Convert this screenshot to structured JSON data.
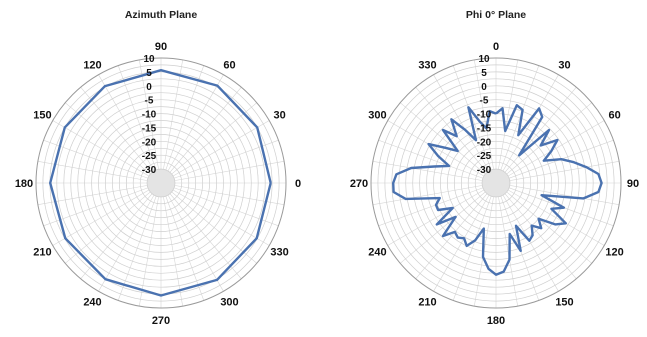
{
  "chart_data": [
    {
      "type": "polar-line",
      "title": "Azimuth Plane",
      "angle_labels": [
        "0",
        "30",
        "60",
        "90",
        "120",
        "150",
        "180",
        "210",
        "240",
        "270",
        "300",
        "330"
      ],
      "angle_zero_direction": "right",
      "angle_direction": "counterclockwise",
      "radial_ticks": [
        "10",
        "5",
        "0",
        "-5",
        "-10",
        "-15",
        "-20",
        "-25",
        "-30"
      ],
      "rlim": [
        -35,
        10
      ],
      "series": [
        {
          "color": "#4a72b0",
          "theta_deg": [
            0,
            30,
            60,
            90,
            120,
            150,
            180,
            210,
            240,
            270,
            300,
            330,
            360
          ],
          "gain_db": [
            4.5,
            5.0,
            5.5,
            5.6,
            5.3,
            5.0,
            4.9,
            4.8,
            5.0,
            5.5,
            5.3,
            4.8,
            4.5
          ]
        }
      ]
    },
    {
      "type": "polar-line",
      "title": "Phi 0° Plane",
      "angle_labels": [
        "0",
        "30",
        "60",
        "90",
        "120",
        "150",
        "180",
        "210",
        "240",
        "270",
        "300",
        "330"
      ],
      "angle_zero_direction": "top",
      "angle_direction": "clockwise",
      "radial_ticks": [
        "10",
        "5",
        "0",
        "-5",
        "-10",
        "-15",
        "-20",
        "-25",
        "-30"
      ],
      "rlim": [
        -35,
        10
      ],
      "series": [
        {
          "color": "#4a72b0",
          "theta_deg": [
            0,
            5,
            10,
            15,
            20,
            25,
            30,
            35,
            40,
            45,
            50,
            55,
            60,
            65,
            70,
            75,
            80,
            85,
            90,
            95,
            100,
            105,
            110,
            115,
            120,
            125,
            130,
            135,
            140,
            145,
            150,
            155,
            160,
            165,
            170,
            175,
            180,
            185,
            190,
            195,
            200,
            205,
            210,
            215,
            220,
            225,
            230,
            235,
            240,
            245,
            250,
            255,
            260,
            265,
            270,
            275,
            280,
            285,
            290,
            295,
            300,
            305,
            310,
            315,
            320,
            325,
            330,
            335,
            340,
            345,
            350,
            355,
            360
          ],
          "gain_db": [
            -10,
            -8,
            -16,
            -6,
            -7,
            -16,
            -4,
            -6,
            -22,
            -8,
            -14,
            -8,
            -12,
            -16,
            -10,
            -6,
            -2,
            2,
            3,
            2,
            -3,
            -18,
            -9,
            -13,
            -6,
            -9,
            -15,
            -12,
            -15,
            -12,
            -11,
            -18,
            -9,
            -16,
            -7,
            -3,
            -2,
            -4,
            -8,
            -18,
            -13,
            -10,
            -12,
            -11,
            -12,
            -8,
            -16,
            -9,
            -17,
            -12,
            -12,
            -14,
            -2,
            2,
            2,
            1,
            -4,
            -12,
            -17,
            -12,
            -7,
            -13,
            -17,
            -8,
            -13,
            -7,
            -13,
            -18,
            -6,
            -12,
            -15,
            -9,
            -10
          ]
        }
      ]
    }
  ]
}
